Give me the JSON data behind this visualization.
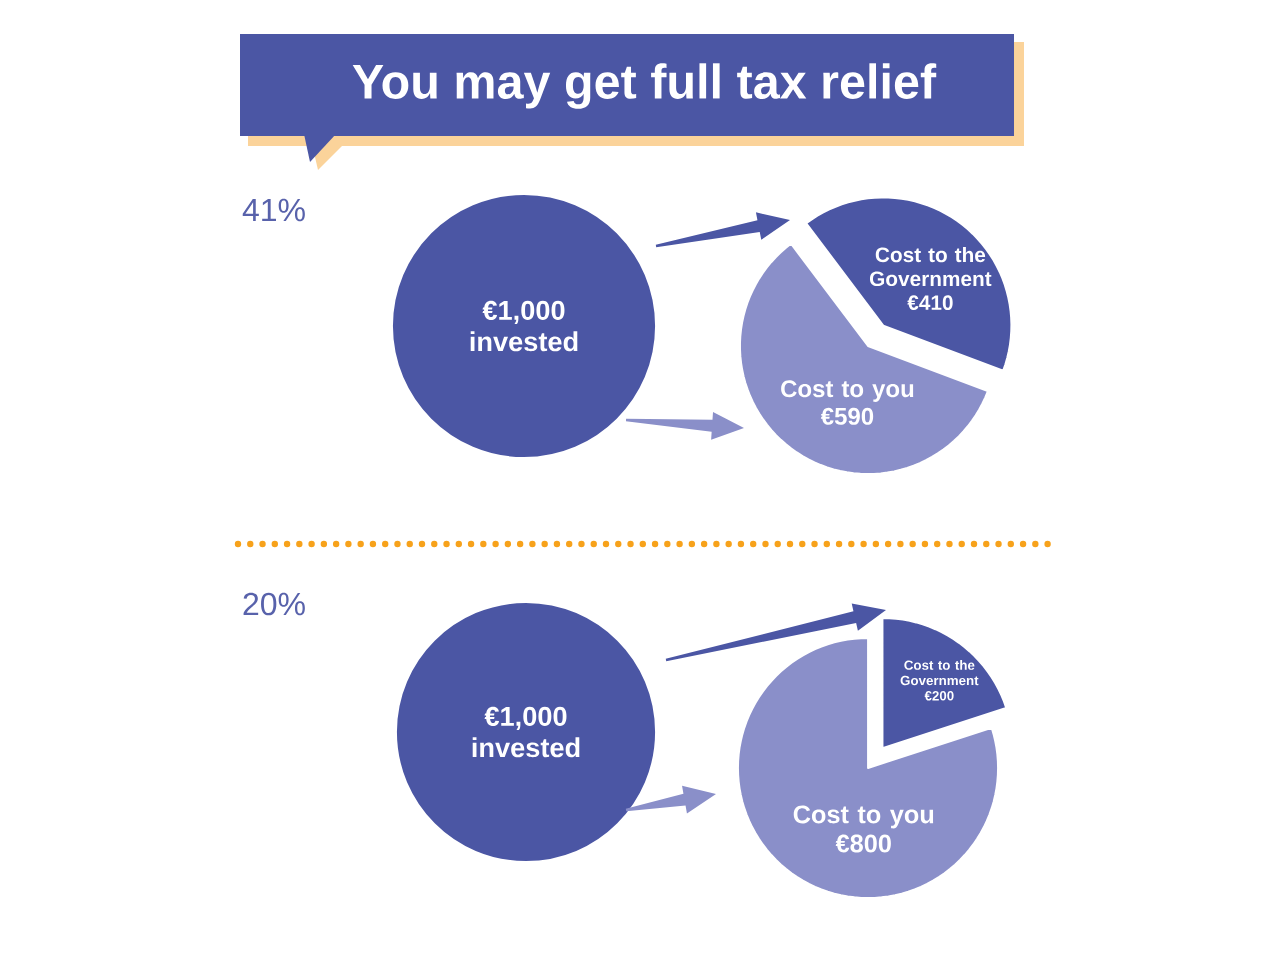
{
  "chart_data": [
    {
      "type": "pie",
      "title": "You may get full tax relief",
      "subtitle": "41%",
      "categories": [
        "Cost to the Government",
        "Cost to you"
      ],
      "values": [
        410,
        590
      ],
      "value_labels": [
        "€410",
        "€590"
      ],
      "colors": [
        "#4b56a4",
        "#8a8fc9"
      ],
      "annotations": [
        "€1,000 invested"
      ]
    },
    {
      "type": "pie",
      "subtitle": "20%",
      "categories": [
        "Cost to the Government",
        "Cost to you"
      ],
      "values": [
        200,
        800
      ],
      "value_labels": [
        "€200",
        "€800"
      ],
      "colors": [
        "#4b56a4",
        "#8a8fc9"
      ],
      "annotations": [
        "€1,000 invested"
      ]
    }
  ]
}
